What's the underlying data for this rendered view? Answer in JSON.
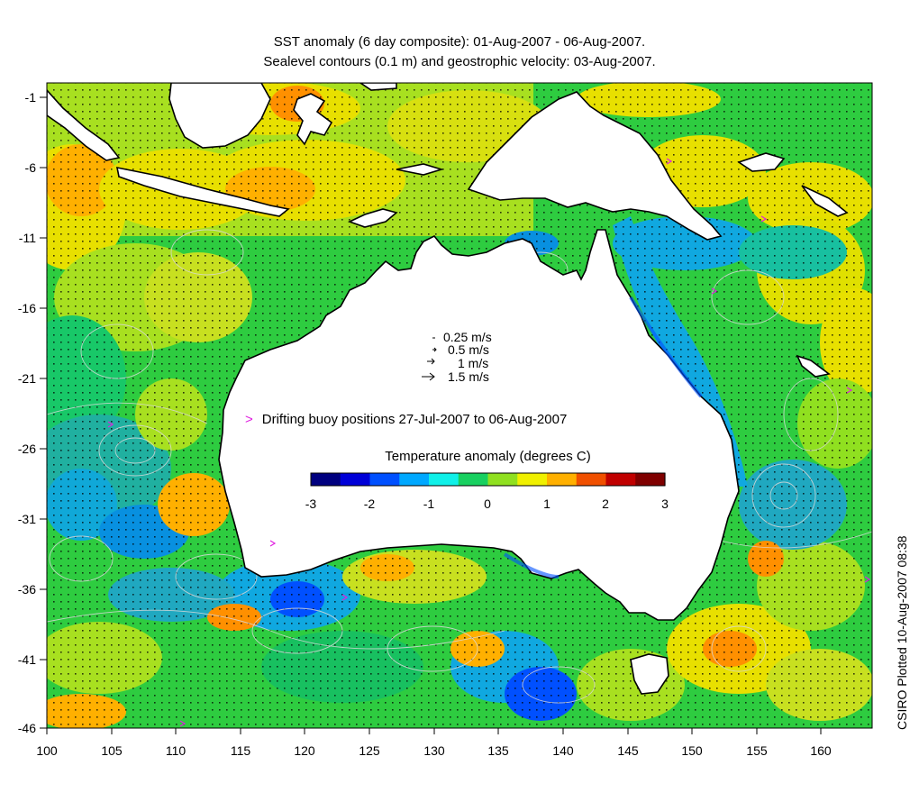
{
  "title_line1": "SST anomaly (6 day composite): 01-Aug-2007 - 06-Aug-2007.",
  "title_line2": "Sealevel contours (0.1 m) and geostrophic velocity: 03-Aug-2007.",
  "credit": "CSIRO Plotted 10-Aug-2007 08:38",
  "y_ticks": [
    "-1",
    "-6",
    "-11",
    "-16",
    "-21",
    "-26",
    "-31",
    "-36",
    "-41",
    "-46"
  ],
  "x_ticks": [
    "100",
    "105",
    "110",
    "115",
    "120",
    "125",
    "130",
    "135",
    "140",
    "145",
    "150",
    "155",
    "160"
  ],
  "velocity_legend": [
    "0.25 m/s",
    "0.5 m/s",
    "1 m/s",
    "1.5 m/s"
  ],
  "buoy_legend": "Drifting buoy positions 27-Jul-2007 to 06-Aug-2007",
  "colorbar": {
    "title": "Temperature anomaly (degrees C)",
    "ticks": [
      "-3",
      "-2",
      "-1",
      "0",
      "1",
      "2",
      "3"
    ],
    "range": [
      -3,
      3
    ],
    "colors": [
      "#00007f",
      "#0000d8",
      "#0050ff",
      "#00a8ff",
      "#10f0e8",
      "#18d060",
      "#90e020",
      "#f0f000",
      "#ffb000",
      "#f05000",
      "#c00000",
      "#7f0000"
    ]
  },
  "map_extent": {
    "lon": [
      100,
      164
    ],
    "lat": [
      -46,
      1
    ]
  },
  "land_color": "#ffffff",
  "coast_color": "#000000",
  "contour_color": "#d8d8d8",
  "buoy_color": "#e020e0"
}
